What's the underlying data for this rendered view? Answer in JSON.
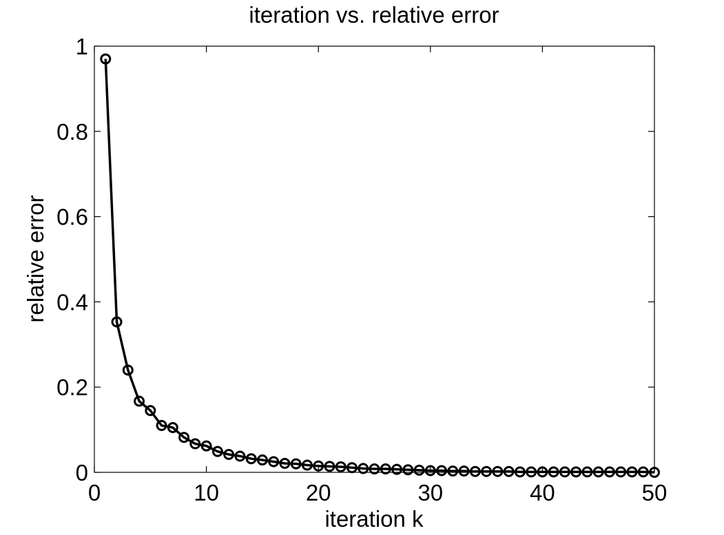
{
  "chart_data": {
    "type": "line",
    "title": "iteration  vs.  relative error",
    "xlabel": "iteration k",
    "ylabel": "relative error",
    "xlim": [
      0,
      50
    ],
    "ylim": [
      0,
      1
    ],
    "xticks": [
      0,
      10,
      20,
      30,
      40,
      50
    ],
    "yticks": [
      0,
      0.2,
      0.4,
      0.6,
      0.8,
      1
    ],
    "xtick_labels": [
      "0",
      "10",
      "20",
      "30",
      "40",
      "50"
    ],
    "ytick_labels": [
      "0",
      "0.2",
      "0.4",
      "0.6",
      "0.8",
      "1"
    ],
    "grid": false,
    "legend": null,
    "marker": "circle",
    "color": "#000000",
    "series": [
      {
        "x": [
          1,
          2,
          3,
          4,
          5,
          6,
          7,
          8,
          9,
          10,
          11,
          12,
          13,
          14,
          15,
          16,
          17,
          18,
          19,
          20,
          21,
          22,
          23,
          24,
          25,
          26,
          27,
          28,
          29,
          30,
          31,
          32,
          33,
          34,
          35,
          36,
          37,
          38,
          39,
          40,
          41,
          42,
          43,
          44,
          45,
          46,
          47,
          48,
          49,
          50
        ],
        "values": [
          0.97,
          0.353,
          0.24,
          0.167,
          0.145,
          0.11,
          0.105,
          0.082,
          0.067,
          0.062,
          0.049,
          0.042,
          0.038,
          0.032,
          0.029,
          0.025,
          0.021,
          0.02,
          0.017,
          0.015,
          0.014,
          0.013,
          0.011,
          0.009,
          0.008,
          0.008,
          0.007,
          0.006,
          0.005,
          0.004,
          0.004,
          0.003,
          0.003,
          0.002,
          0.002,
          0.002,
          0.002,
          0.001,
          0.001,
          0.001,
          0.001,
          0.001,
          0.001,
          0.001,
          0.001,
          0.001,
          0.001,
          0.001,
          0.001,
          0.0
        ]
      }
    ]
  }
}
